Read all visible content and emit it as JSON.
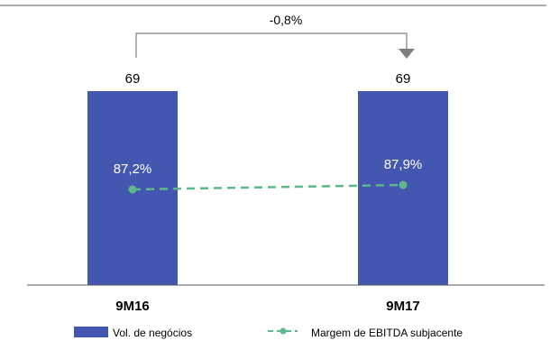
{
  "chart_data": {
    "type": "bar",
    "categories": [
      "9M16",
      "9M17"
    ],
    "series": [
      {
        "name": "Vol. de negócios",
        "type": "bar",
        "values": [
          69,
          69
        ],
        "labels": [
          "69",
          "69"
        ],
        "color": "#4457B0"
      },
      {
        "name": "Margem de EBITDA subjacente",
        "type": "line",
        "values": [
          87.2,
          87.9
        ],
        "labels": [
          "87,2%",
          "87,9%"
        ],
        "color": "#5DB88A",
        "style": "dashed"
      }
    ],
    "annotation": {
      "text": "-0,8%",
      "from": "9M16",
      "to": "9M17"
    },
    "grid": false,
    "legend": "bottom"
  },
  "colors": {
    "bar": "#4457B0",
    "line": "#5DB88A",
    "axis": "#595959",
    "bracket": "#7F7F7F"
  }
}
